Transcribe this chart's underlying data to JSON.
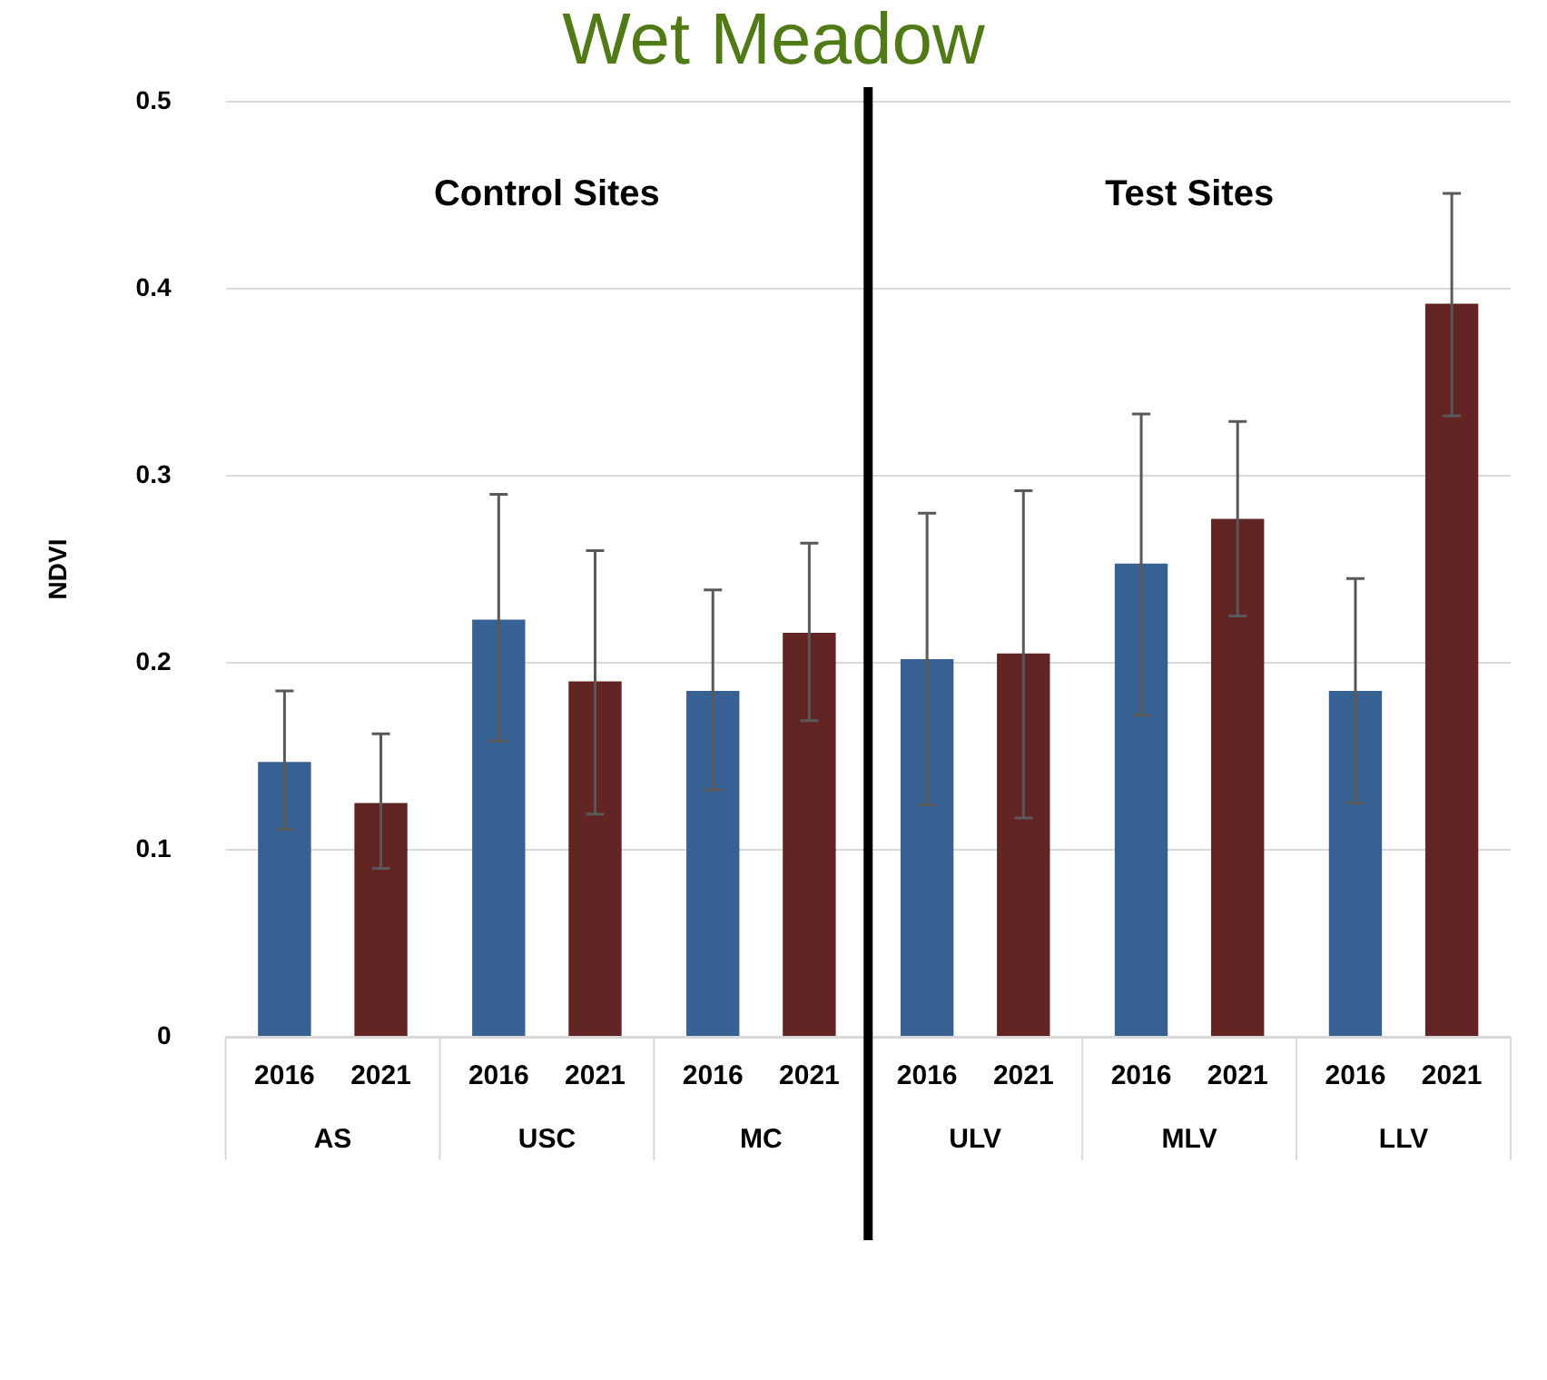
{
  "chart_data": {
    "type": "bar",
    "title": "Wet Meadow",
    "ylabel": "NDVI",
    "categories": [
      "AS",
      "USC",
      "MC",
      "ULV",
      "MLV",
      "LLV"
    ],
    "series": [
      {
        "name": "2016",
        "color": "#386193",
        "values": [
          0.147,
          0.223,
          0.185,
          0.202,
          0.253,
          0.185
        ],
        "errors": [
          [
            0.111,
            0.185
          ],
          [
            0.158,
            0.29
          ],
          [
            0.132,
            0.239
          ],
          [
            0.124,
            0.28
          ],
          [
            0.172,
            0.333
          ],
          [
            0.125,
            0.245
          ]
        ]
      },
      {
        "name": "2021",
        "color": "#632424",
        "values": [
          0.125,
          0.19,
          0.216,
          0.205,
          0.277,
          0.392
        ],
        "errors": [
          [
            0.09,
            0.162
          ],
          [
            0.119,
            0.26
          ],
          [
            0.169,
            0.264
          ],
          [
            0.117,
            0.292
          ],
          [
            0.225,
            0.329
          ],
          [
            0.332,
            0.451
          ]
        ]
      }
    ],
    "annotations": [
      "Control Sites",
      "Test Sites"
    ],
    "ref_lines": [
      {
        "axis": "x",
        "value": "ULV",
        "color": "#000000"
      }
    ],
    "ylim": [
      0,
      0.5
    ],
    "yticks": [
      0,
      0.1,
      0.2,
      0.3,
      0.4,
      0.5
    ],
    "grid": "y"
  }
}
